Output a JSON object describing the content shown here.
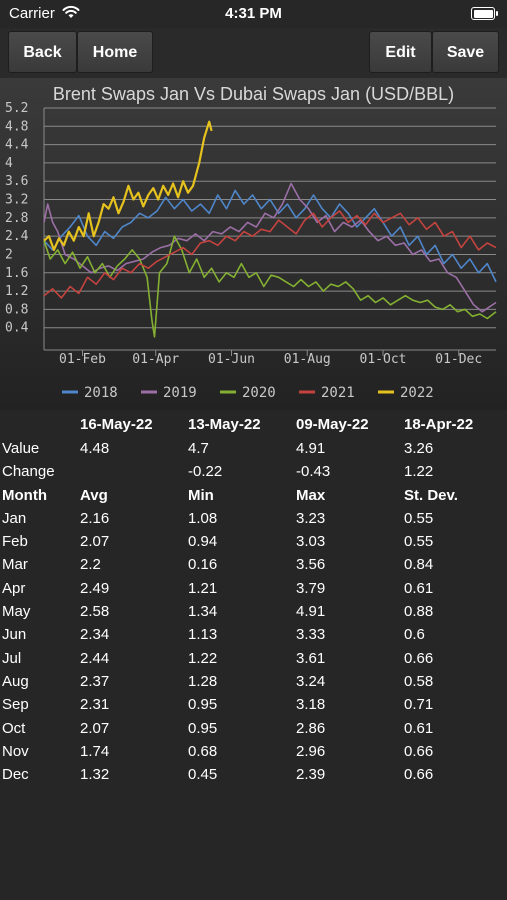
{
  "status": {
    "carrier": "Carrier",
    "time": "4:31 PM"
  },
  "toolbar": {
    "back": "Back",
    "home": "Home",
    "edit": "Edit",
    "save": "Save"
  },
  "chart_data": {
    "type": "line",
    "title": "Brent Swaps Jan Vs Dubai Swaps Jan (USD/BBL)",
    "xlabel": "",
    "ylabel": "",
    "x_ticks": [
      "01-Feb",
      "01-Apr",
      "01-Jun",
      "01-Aug",
      "01-Oct",
      "01-Dec"
    ],
    "y_ticks": [
      "0.4",
      "0.8",
      "1.2",
      "1.6",
      "2",
      "2.4",
      "2.8",
      "3.2",
      "3.6",
      "4",
      "4.4",
      "4.8",
      "5.2"
    ],
    "ylim": [
      0,
      5.2
    ],
    "x_unit": "day of year",
    "xlim": [
      1,
      365
    ],
    "grid": true,
    "legend_position": "bottom",
    "series": [
      {
        "name": "2018",
        "color": "#4f86c9",
        "points": [
          [
            1,
            2.3
          ],
          [
            8,
            2.1
          ],
          [
            15,
            2.4
          ],
          [
            22,
            2.6
          ],
          [
            29,
            2.85
          ],
          [
            36,
            2.4
          ],
          [
            43,
            2.2
          ],
          [
            50,
            2.5
          ],
          [
            57,
            2.35
          ],
          [
            64,
            2.6
          ],
          [
            71,
            2.7
          ],
          [
            78,
            2.9
          ],
          [
            85,
            2.8
          ],
          [
            92,
            2.95
          ],
          [
            99,
            3.25
          ],
          [
            106,
            3.0
          ],
          [
            113,
            3.2
          ],
          [
            120,
            2.95
          ],
          [
            127,
            3.1
          ],
          [
            134,
            2.9
          ],
          [
            141,
            3.3
          ],
          [
            148,
            3.0
          ],
          [
            155,
            3.4
          ],
          [
            162,
            3.1
          ],
          [
            169,
            3.3
          ],
          [
            176,
            3.0
          ],
          [
            183,
            3.2
          ],
          [
            190,
            2.9
          ],
          [
            197,
            3.1
          ],
          [
            204,
            2.8
          ],
          [
            211,
            3.0
          ],
          [
            218,
            3.3
          ],
          [
            225,
            3.0
          ],
          [
            232,
            2.8
          ],
          [
            239,
            3.1
          ],
          [
            246,
            2.9
          ],
          [
            253,
            2.6
          ],
          [
            260,
            2.8
          ],
          [
            267,
            3.0
          ],
          [
            274,
            2.7
          ],
          [
            281,
            2.4
          ],
          [
            288,
            2.6
          ],
          [
            295,
            2.2
          ],
          [
            302,
            2.4
          ],
          [
            309,
            2.0
          ],
          [
            316,
            2.2
          ],
          [
            323,
            1.8
          ],
          [
            330,
            2.0
          ],
          [
            337,
            1.7
          ],
          [
            344,
            1.9
          ],
          [
            351,
            1.6
          ],
          [
            358,
            1.8
          ],
          [
            365,
            1.4
          ]
        ]
      },
      {
        "name": "2019",
        "color": "#9b6fa6",
        "points": [
          [
            1,
            2.7
          ],
          [
            4,
            3.1
          ],
          [
            8,
            2.7
          ],
          [
            12,
            2.5
          ],
          [
            18,
            2.0
          ],
          [
            25,
            1.9
          ],
          [
            32,
            1.75
          ],
          [
            39,
            1.6
          ],
          [
            46,
            1.7
          ],
          [
            53,
            1.75
          ],
          [
            60,
            1.65
          ],
          [
            67,
            1.8
          ],
          [
            74,
            1.85
          ],
          [
            81,
            1.9
          ],
          [
            88,
            2.05
          ],
          [
            95,
            2.15
          ],
          [
            102,
            2.2
          ],
          [
            109,
            2.35
          ],
          [
            116,
            2.3
          ],
          [
            123,
            2.45
          ],
          [
            130,
            2.3
          ],
          [
            137,
            2.5
          ],
          [
            144,
            2.45
          ],
          [
            151,
            2.6
          ],
          [
            158,
            2.5
          ],
          [
            165,
            2.7
          ],
          [
            172,
            2.6
          ],
          [
            179,
            2.9
          ],
          [
            186,
            2.8
          ],
          [
            193,
            3.1
          ],
          [
            200,
            3.55
          ],
          [
            207,
            3.2
          ],
          [
            214,
            3.0
          ],
          [
            221,
            2.7
          ],
          [
            228,
            2.85
          ],
          [
            235,
            2.5
          ],
          [
            242,
            2.7
          ],
          [
            249,
            2.6
          ],
          [
            256,
            2.75
          ],
          [
            263,
            2.5
          ],
          [
            270,
            2.3
          ],
          [
            277,
            2.4
          ],
          [
            284,
            2.2
          ],
          [
            291,
            2.25
          ],
          [
            298,
            2.0
          ],
          [
            305,
            2.1
          ],
          [
            312,
            1.85
          ],
          [
            319,
            1.9
          ],
          [
            326,
            1.6
          ],
          [
            333,
            1.5
          ],
          [
            340,
            1.2
          ],
          [
            347,
            0.9
          ],
          [
            354,
            0.75
          ],
          [
            365,
            0.95
          ]
        ]
      },
      {
        "name": "2020",
        "color": "#84b032",
        "points": [
          [
            1,
            2.3
          ],
          [
            6,
            1.9
          ],
          [
            12,
            2.1
          ],
          [
            18,
            1.8
          ],
          [
            24,
            2.05
          ],
          [
            30,
            1.7
          ],
          [
            36,
            1.95
          ],
          [
            42,
            1.6
          ],
          [
            48,
            1.8
          ],
          [
            54,
            1.5
          ],
          [
            60,
            1.75
          ],
          [
            66,
            1.9
          ],
          [
            72,
            2.1
          ],
          [
            78,
            1.9
          ],
          [
            84,
            1.5
          ],
          [
            88,
            0.55
          ],
          [
            90,
            0.2
          ],
          [
            94,
            1.6
          ],
          [
            100,
            1.8
          ],
          [
            106,
            2.4
          ],
          [
            112,
            2.1
          ],
          [
            118,
            1.6
          ],
          [
            124,
            1.9
          ],
          [
            130,
            1.5
          ],
          [
            136,
            1.7
          ],
          [
            142,
            1.4
          ],
          [
            148,
            1.6
          ],
          [
            154,
            1.5
          ],
          [
            160,
            1.8
          ],
          [
            166,
            1.5
          ],
          [
            172,
            1.6
          ],
          [
            178,
            1.3
          ],
          [
            184,
            1.55
          ],
          [
            190,
            1.5
          ],
          [
            196,
            1.4
          ],
          [
            202,
            1.3
          ],
          [
            208,
            1.45
          ],
          [
            214,
            1.3
          ],
          [
            220,
            1.4
          ],
          [
            226,
            1.2
          ],
          [
            232,
            1.35
          ],
          [
            238,
            1.3
          ],
          [
            244,
            1.4
          ],
          [
            250,
            1.25
          ],
          [
            256,
            1.0
          ],
          [
            262,
            1.1
          ],
          [
            268,
            0.95
          ],
          [
            274,
            1.05
          ],
          [
            280,
            0.9
          ],
          [
            286,
            1.0
          ],
          [
            292,
            1.1
          ],
          [
            298,
            1.0
          ],
          [
            304,
            0.95
          ],
          [
            310,
            1.0
          ],
          [
            316,
            0.85
          ],
          [
            322,
            0.8
          ],
          [
            328,
            0.9
          ],
          [
            334,
            0.75
          ],
          [
            340,
            0.8
          ],
          [
            346,
            0.65
          ],
          [
            352,
            0.7
          ],
          [
            358,
            0.6
          ],
          [
            365,
            0.75
          ]
        ]
      },
      {
        "name": "2021",
        "color": "#c4433f",
        "points": [
          [
            1,
            1.1
          ],
          [
            8,
            1.25
          ],
          [
            15,
            1.05
          ],
          [
            22,
            1.3
          ],
          [
            29,
            1.15
          ],
          [
            36,
            1.5
          ],
          [
            43,
            1.35
          ],
          [
            50,
            1.6
          ],
          [
            57,
            1.45
          ],
          [
            64,
            1.7
          ],
          [
            71,
            1.6
          ],
          [
            78,
            1.8
          ],
          [
            85,
            1.7
          ],
          [
            92,
            1.85
          ],
          [
            99,
            1.95
          ],
          [
            106,
            2.05
          ],
          [
            113,
            2.15
          ],
          [
            120,
            2.0
          ],
          [
            127,
            2.25
          ],
          [
            134,
            2.3
          ],
          [
            141,
            2.2
          ],
          [
            148,
            2.4
          ],
          [
            155,
            2.3
          ],
          [
            162,
            2.5
          ],
          [
            169,
            2.4
          ],
          [
            176,
            2.55
          ],
          [
            183,
            2.5
          ],
          [
            190,
            2.75
          ],
          [
            197,
            2.6
          ],
          [
            204,
            2.45
          ],
          [
            211,
            2.75
          ],
          [
            218,
            2.9
          ],
          [
            225,
            2.6
          ],
          [
            232,
            2.8
          ],
          [
            239,
            2.95
          ],
          [
            246,
            2.7
          ],
          [
            253,
            2.85
          ],
          [
            260,
            2.65
          ],
          [
            267,
            2.9
          ],
          [
            274,
            2.7
          ],
          [
            281,
            2.8
          ],
          [
            288,
            2.9
          ],
          [
            295,
            2.65
          ],
          [
            302,
            2.8
          ],
          [
            309,
            2.55
          ],
          [
            316,
            2.7
          ],
          [
            323,
            2.4
          ],
          [
            330,
            2.5
          ],
          [
            337,
            2.15
          ],
          [
            344,
            2.4
          ],
          [
            351,
            2.1
          ],
          [
            358,
            2.25
          ],
          [
            365,
            2.15
          ]
        ]
      },
      {
        "name": "2022",
        "color": "#e6c21e",
        "points": [
          [
            1,
            2.3
          ],
          [
            5,
            2.4
          ],
          [
            9,
            2.1
          ],
          [
            13,
            2.35
          ],
          [
            17,
            2.2
          ],
          [
            21,
            2.5
          ],
          [
            25,
            2.3
          ],
          [
            29,
            2.6
          ],
          [
            33,
            2.4
          ],
          [
            37,
            2.9
          ],
          [
            41,
            2.4
          ],
          [
            45,
            2.7
          ],
          [
            49,
            3.1
          ],
          [
            53,
            3.0
          ],
          [
            57,
            3.25
          ],
          [
            61,
            2.9
          ],
          [
            65,
            3.15
          ],
          [
            69,
            3.5
          ],
          [
            73,
            3.2
          ],
          [
            77,
            3.35
          ],
          [
            81,
            3.05
          ],
          [
            85,
            3.3
          ],
          [
            89,
            3.45
          ],
          [
            93,
            3.2
          ],
          [
            97,
            3.5
          ],
          [
            101,
            3.3
          ],
          [
            105,
            3.55
          ],
          [
            109,
            3.25
          ],
          [
            113,
            3.6
          ],
          [
            117,
            3.35
          ],
          [
            121,
            3.5
          ],
          [
            126,
            4.0
          ],
          [
            130,
            4.55
          ],
          [
            134,
            4.9
          ],
          [
            136,
            4.7
          ]
        ]
      }
    ]
  },
  "table": {
    "headers": [
      "16-May-22",
      "13-May-22",
      "09-May-22",
      "18-Apr-22"
    ],
    "value_row": {
      "label": "Value",
      "cells": [
        "4.48",
        "4.7",
        "4.91",
        "3.26"
      ]
    },
    "change_row": {
      "label": "Change",
      "cells": [
        "",
        "-0.22",
        "-0.43",
        "1.22"
      ]
    },
    "stats_headers": [
      "Month",
      "Avg",
      "Min",
      "Max",
      "St. Dev."
    ],
    "rows": [
      [
        "Jan",
        "2.16",
        "1.08",
        "3.23",
        "0.55"
      ],
      [
        "Feb",
        "2.07",
        "0.94",
        "3.03",
        "0.55"
      ],
      [
        "Mar",
        "2.2",
        "0.16",
        "3.56",
        "0.84"
      ],
      [
        "Apr",
        "2.49",
        "1.21",
        "3.79",
        "0.61"
      ],
      [
        "May",
        "2.58",
        "1.34",
        "4.91",
        "0.88"
      ],
      [
        "Jun",
        "2.34",
        "1.13",
        "3.33",
        "0.6"
      ],
      [
        "Jul",
        "2.44",
        "1.22",
        "3.61",
        "0.66"
      ],
      [
        "Aug",
        "2.37",
        "1.28",
        "3.24",
        "0.58"
      ],
      [
        "Sep",
        "2.31",
        "0.95",
        "3.18",
        "0.71"
      ],
      [
        "Oct",
        "2.07",
        "0.95",
        "2.86",
        "0.61"
      ],
      [
        "Nov",
        "1.74",
        "0.68",
        "2.96",
        "0.66"
      ],
      [
        "Dec",
        "1.32",
        "0.45",
        "2.39",
        "0.66"
      ]
    ]
  }
}
